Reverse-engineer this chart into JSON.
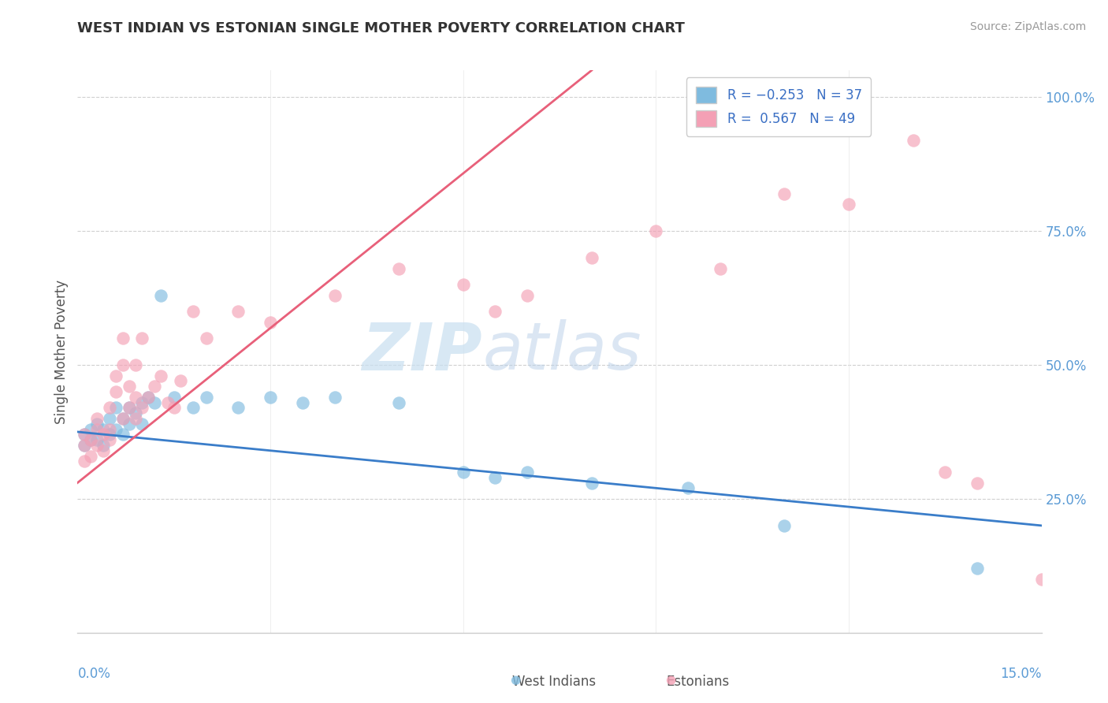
{
  "title": "WEST INDIAN VS ESTONIAN SINGLE MOTHER POVERTY CORRELATION CHART",
  "source": "Source: ZipAtlas.com",
  "ylabel": "Single Mother Poverty",
  "xlim": [
    0.0,
    0.15
  ],
  "ylim": [
    0.0,
    1.05
  ],
  "yticks": [
    0.25,
    0.5,
    0.75,
    1.0
  ],
  "ytick_labels": [
    "25.0%",
    "50.0%",
    "75.0%",
    "100.0%"
  ],
  "color_blue": "#7fbbdf",
  "color_pink": "#f4a0b5",
  "color_blue_line": "#3a7dc9",
  "color_pink_line": "#e8607a",
  "watermark_zip": "ZIP",
  "watermark_atlas": "atlas",
  "legend_text_1": "R = -0.253   N = 37",
  "legend_text_2": "R =  0.567   N = 49",
  "west_indian_x": [
    0.001,
    0.001,
    0.002,
    0.002,
    0.003,
    0.003,
    0.004,
    0.004,
    0.005,
    0.005,
    0.006,
    0.006,
    0.007,
    0.007,
    0.008,
    0.008,
    0.009,
    0.01,
    0.01,
    0.011,
    0.012,
    0.013,
    0.015,
    0.018,
    0.02,
    0.025,
    0.03,
    0.035,
    0.04,
    0.05,
    0.06,
    0.065,
    0.07,
    0.08,
    0.095,
    0.11,
    0.14
  ],
  "west_indian_y": [
    0.37,
    0.35,
    0.38,
    0.36,
    0.39,
    0.36,
    0.38,
    0.35,
    0.4,
    0.37,
    0.42,
    0.38,
    0.4,
    0.37,
    0.42,
    0.39,
    0.41,
    0.43,
    0.39,
    0.44,
    0.43,
    0.63,
    0.44,
    0.42,
    0.44,
    0.42,
    0.44,
    0.43,
    0.44,
    0.43,
    0.3,
    0.29,
    0.3,
    0.28,
    0.27,
    0.2,
    0.12
  ],
  "estonian_x": [
    0.001,
    0.001,
    0.001,
    0.002,
    0.002,
    0.003,
    0.003,
    0.003,
    0.004,
    0.004,
    0.005,
    0.005,
    0.005,
    0.006,
    0.006,
    0.007,
    0.007,
    0.007,
    0.008,
    0.008,
    0.009,
    0.009,
    0.009,
    0.01,
    0.01,
    0.011,
    0.012,
    0.013,
    0.014,
    0.015,
    0.016,
    0.018,
    0.02,
    0.025,
    0.03,
    0.04,
    0.05,
    0.06,
    0.065,
    0.07,
    0.08,
    0.09,
    0.1,
    0.11,
    0.12,
    0.13,
    0.135,
    0.14,
    0.15
  ],
  "estonian_y": [
    0.32,
    0.35,
    0.37,
    0.33,
    0.36,
    0.38,
    0.4,
    0.35,
    0.34,
    0.37,
    0.38,
    0.42,
    0.36,
    0.45,
    0.48,
    0.5,
    0.55,
    0.4,
    0.46,
    0.42,
    0.44,
    0.4,
    0.5,
    0.55,
    0.42,
    0.44,
    0.46,
    0.48,
    0.43,
    0.42,
    0.47,
    0.6,
    0.55,
    0.6,
    0.58,
    0.63,
    0.68,
    0.65,
    0.6,
    0.63,
    0.7,
    0.75,
    0.68,
    0.82,
    0.8,
    0.92,
    0.3,
    0.28,
    0.1
  ]
}
